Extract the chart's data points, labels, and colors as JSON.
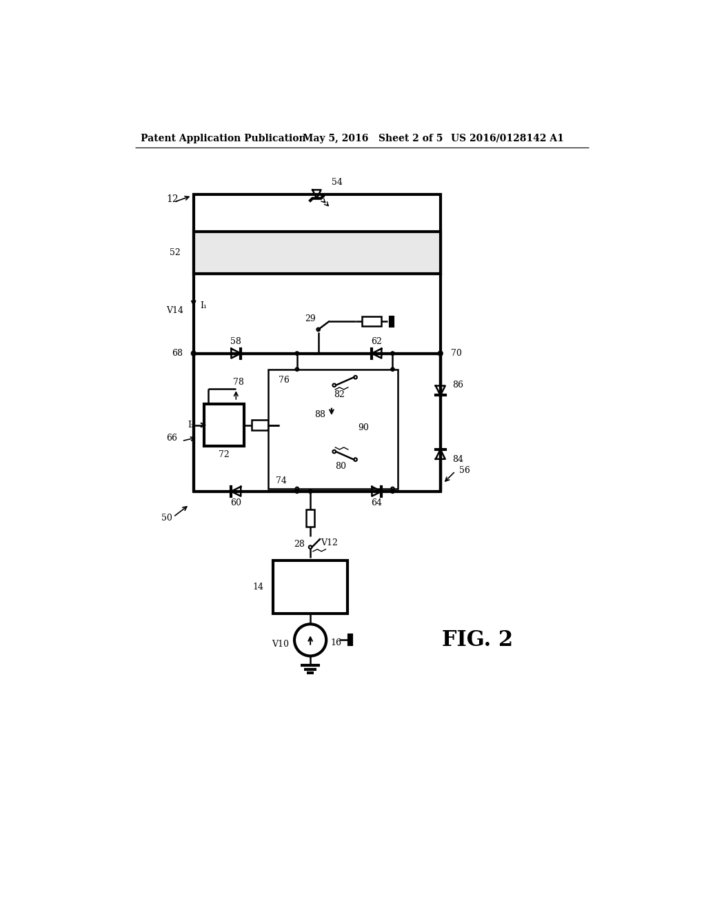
{
  "header_left": "Patent Application Publication",
  "header_mid": "May 5, 2016   Sheet 2 of 5",
  "header_right": "US 2016/0128142 A1",
  "fig_label": "FIG. 2",
  "bg_color": "#ffffff"
}
